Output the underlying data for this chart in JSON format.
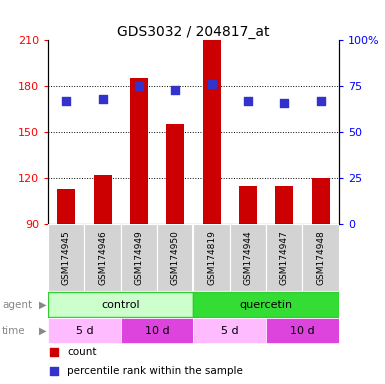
{
  "title": "GDS3032 / 204817_at",
  "samples": [
    "GSM174945",
    "GSM174946",
    "GSM174949",
    "GSM174950",
    "GSM174819",
    "GSM174944",
    "GSM174947",
    "GSM174948"
  ],
  "counts": [
    113,
    122,
    185,
    155,
    210,
    115,
    115,
    120
  ],
  "percentile_ranks": [
    67,
    68,
    75,
    73,
    76,
    67,
    66,
    67
  ],
  "y_min": 90,
  "y_max": 210,
  "y_ticks": [
    90,
    120,
    150,
    180,
    210
  ],
  "y2_ticks": [
    0,
    25,
    50,
    75,
    100
  ],
  "bar_color": "#cc0000",
  "dot_color": "#3333cc",
  "agent_groups": [
    {
      "label": "control",
      "start": 0,
      "end": 4,
      "color": "#ccffcc",
      "outline_color": "#33cc33"
    },
    {
      "label": "quercetin",
      "start": 4,
      "end": 8,
      "color": "#33dd33",
      "outline_color": "#33cc33"
    }
  ],
  "time_groups": [
    {
      "label": "5 d",
      "start": 0,
      "end": 2,
      "color": "#ffbbff"
    },
    {
      "label": "10 d",
      "start": 2,
      "end": 4,
      "color": "#dd44dd"
    },
    {
      "label": "5 d",
      "start": 4,
      "end": 6,
      "color": "#ffbbff"
    },
    {
      "label": "10 d",
      "start": 6,
      "end": 8,
      "color": "#dd44dd"
    }
  ],
  "background_color": "#ffffff",
  "bar_width": 0.5,
  "dot_size": 28
}
